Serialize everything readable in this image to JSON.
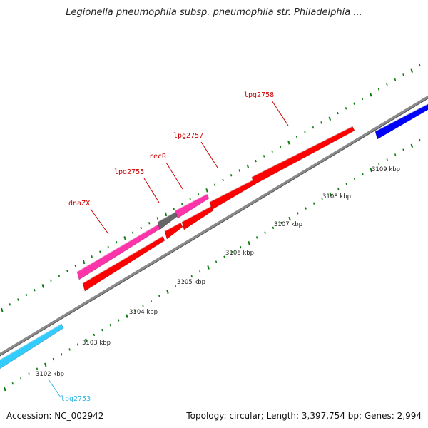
{
  "title": "Legionella pneumophila subsp. pneumophila str. Philadelphia ...",
  "accession": "Accession: NC_002942",
  "topology": "Topology: circular; Length: 3,397,754 bp; Genes: 2,994",
  "colors": {
    "backbone": "#8a8a8a",
    "tick": "#0a7a0a",
    "cds_forward_red": "#ff0000",
    "cds_magenta": "#ff33aa",
    "cds_gray": "#666666",
    "cds_blue": "#0000ff",
    "cds_cyan": "#33ccff",
    "gene_label_red": "#cc0000",
    "gene_label_cyan": "#33b5e5"
  },
  "scale_labels": [
    "3102 kbp",
    "3103 kbp",
    "3104 kbp",
    "3105 kbp",
    "3106 kbp",
    "3107 kbp",
    "3108 kbp",
    "3109 kbp"
  ],
  "gene_labels": [
    "dnaZX",
    "lpg2755",
    "recR",
    "lpg2757",
    "lpg2758",
    "lpg2753"
  ]
}
